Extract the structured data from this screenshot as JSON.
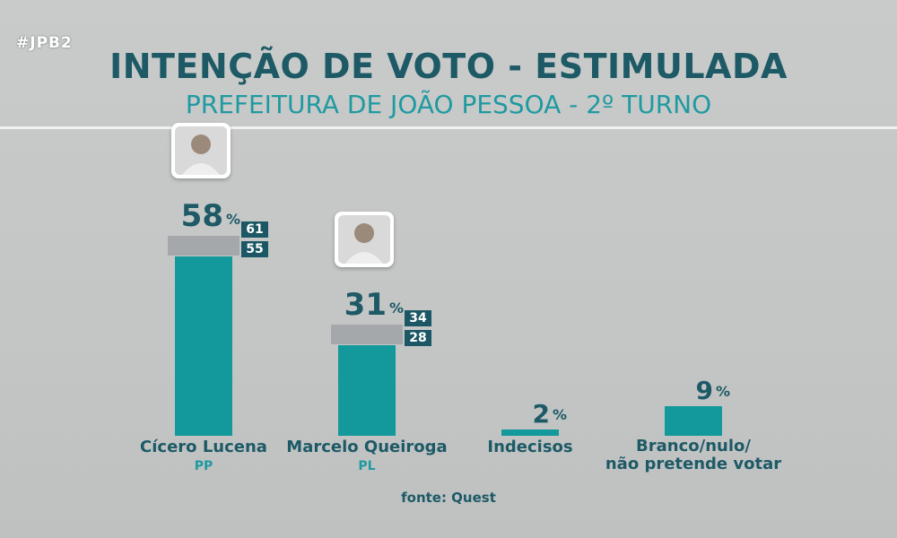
{
  "tag": "#JPB2",
  "header": {
    "title": "INTENÇÃO DE VOTO - ESTIMULADA",
    "subtitle": "PREFEITURA DE JOÃO PESSOA - 2º TURNO"
  },
  "source": "fonte: Quest",
  "chart_data": {
    "type": "bar",
    "categories": [
      "Cícero Lucena",
      "Marcelo Queiroga",
      "Indecisos",
      "Branco/nulo/ não pretende votar"
    ],
    "parties": [
      "PP",
      "PL",
      "",
      ""
    ],
    "values": [
      58,
      31,
      2,
      9
    ],
    "value_labels": [
      "58",
      "31",
      "2",
      "9"
    ],
    "unit": "%",
    "intervals": [
      {
        "high": 61,
        "low": 55
      },
      {
        "high": 34,
        "low": 28
      },
      null,
      null
    ],
    "interval_labels": [
      {
        "high": "61",
        "low": "55"
      },
      {
        "high": "34",
        "low": "28"
      }
    ],
    "ylim": [
      0,
      100
    ],
    "grid": false,
    "bar_color": "#13989b",
    "interval_color": "#9fa2a4",
    "badge_color": "#1b5764"
  }
}
